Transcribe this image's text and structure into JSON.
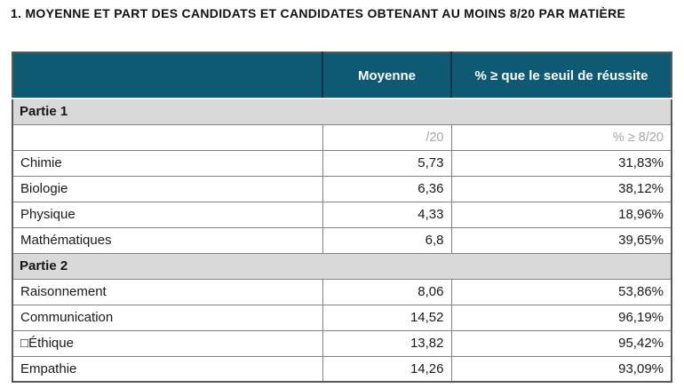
{
  "page_title": "1. MOYENNE ET PART DES CANDIDATS ET CANDIDATES OBTENANT AU MOINS 8/20 PAR MATIÈRE",
  "colors": {
    "header_bg": "#0E5A73",
    "header_text": "#FFFFFF",
    "section_bg": "#D9D9D9",
    "muted_text": "#A6A6A6",
    "border_inner": "#808080",
    "border_outer": "#595959"
  },
  "table": {
    "columns": {
      "matiere": "",
      "moyenne": "Moyenne",
      "seuil": "% ≥ que le seuil de réussite"
    },
    "sections": [
      {
        "label": "Partie 1",
        "unit_row": {
          "moyenne": "/20",
          "seuil": "% ≥ 8/20"
        },
        "rows": [
          {
            "matiere": "Chimie",
            "moyenne": "5,73",
            "seuil": "31,83%"
          },
          {
            "matiere": "Biologie",
            "moyenne": "6,36",
            "seuil": "38,12%"
          },
          {
            "matiere": "Physique",
            "moyenne": "4,33",
            "seuil": "18,96%"
          },
          {
            "matiere": "Mathématiques",
            "moyenne": "6,8",
            "seuil": "39,65%"
          }
        ]
      },
      {
        "label": "Partie 2",
        "rows": [
          {
            "matiere": "Raisonnement",
            "moyenne": "8,06",
            "seuil": "53,86%"
          },
          {
            "matiere": "Communication",
            "moyenne": "14,52",
            "seuil": "96,19%"
          },
          {
            "matiere": "□Éthique",
            "moyenne": "13,82",
            "seuil": "95,42%"
          },
          {
            "matiere": "Empathie",
            "moyenne": "14,26",
            "seuil": "93,09%"
          }
        ]
      }
    ]
  }
}
